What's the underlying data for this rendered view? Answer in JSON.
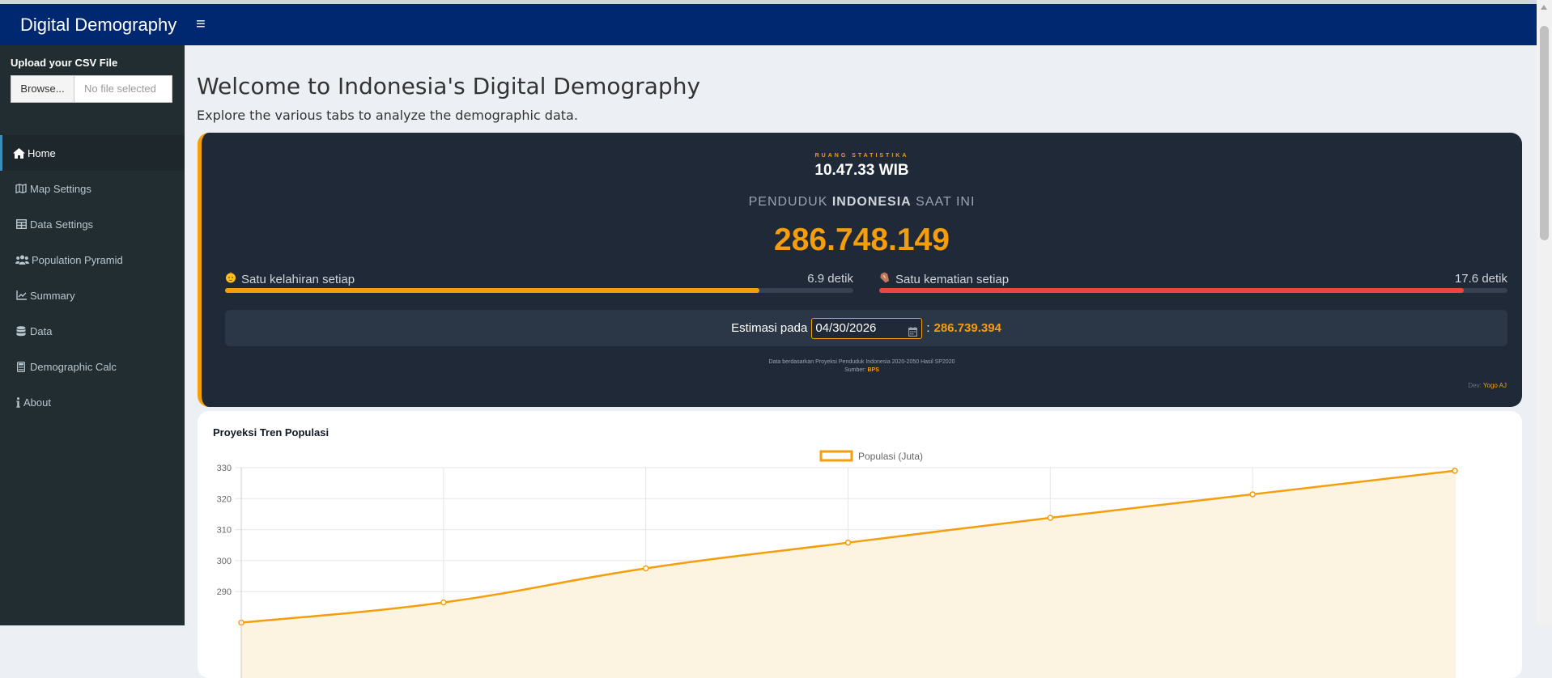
{
  "app": {
    "title": "Digital Demography",
    "menu_toggle": "≡"
  },
  "sidebar": {
    "upload_label": "Upload your CSV File",
    "browse_label": "Browse...",
    "file_placeholder": "No file selected",
    "items": [
      {
        "label": "Home",
        "icon": "home-icon",
        "active": true
      },
      {
        "label": "Map Settings",
        "icon": "map-icon"
      },
      {
        "label": "Data Settings",
        "icon": "table-icon"
      },
      {
        "label": "Population Pyramid",
        "icon": "users-icon"
      },
      {
        "label": "Summary",
        "icon": "line-chart-icon"
      },
      {
        "label": "Data",
        "icon": "database-icon"
      },
      {
        "label": "Demographic Calc",
        "icon": "calculator-icon"
      },
      {
        "label": "About",
        "icon": "info-icon"
      }
    ]
  },
  "main": {
    "title": "Welcome to Indonesia's Digital Demography",
    "subtitle": "Explore the various tabs to analyze the demographic data."
  },
  "widget": {
    "brand": "RUANG STATISTIKA",
    "time": "10.47.33 WIB",
    "label_pre": "PENDUDUK ",
    "label_bold": "INDONESIA",
    "label_post": " SAAT INI",
    "population": "286.748.149",
    "birth": {
      "label": "Satu kelahiran setiap",
      "value": "6.9 detik",
      "progress": 0.85,
      "color": "#f59e0b"
    },
    "death": {
      "label": "Satu kematian setiap",
      "value": "17.6 detik",
      "progress": 0.93,
      "color": "#ef4444"
    },
    "estimate_label": "Estimasi pada",
    "estimate_date": "04/30/2026",
    "estimate_sep": ":",
    "estimate_value": "286.739.394",
    "source_line1": "Data berdasarkan Proyeksi Penduduk Indonesia 2020-2050 Hasil SP2020",
    "source_label": "Sumber:",
    "source_name": "BPS",
    "dev_label": "Dev:",
    "dev_name": "Yogo AJ"
  },
  "chart_title": "Proyeksi Tren Populasi",
  "chart_data": {
    "type": "area",
    "legend": "Populasi (Juta)",
    "ylim": [
      285,
      330
    ],
    "y_ticks": [
      330,
      320,
      310,
      300,
      290
    ],
    "grid": true,
    "line_color": "#f59e0b",
    "fill_color": "#fdf3e1",
    "points": [
      {
        "xi": 0,
        "y": 280
      },
      {
        "xi": 1,
        "y": 286.5
      },
      {
        "xi": 2,
        "y": 297.5
      },
      {
        "xi": 3,
        "y": 305.8
      },
      {
        "xi": 4,
        "y": 313.8
      },
      {
        "xi": 5,
        "y": 321.4
      },
      {
        "xi": 6,
        "y": 329
      }
    ]
  }
}
